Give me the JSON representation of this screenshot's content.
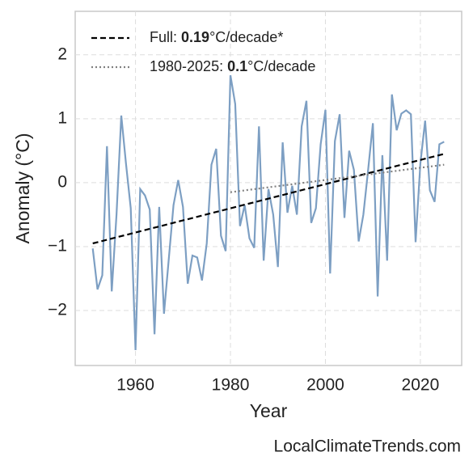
{
  "chart_data": {
    "type": "line",
    "xlabel": "Year",
    "ylabel": "Anomaly (°C)",
    "watermark": "LocalClimateTrends.com",
    "x": [
      1951,
      1952,
      1953,
      1954,
      1955,
      1956,
      1957,
      1958,
      1959,
      1960,
      1961,
      1962,
      1963,
      1964,
      1965,
      1966,
      1967,
      1968,
      1969,
      1970,
      1971,
      1972,
      1973,
      1974,
      1975,
      1976,
      1977,
      1978,
      1979,
      1980,
      1981,
      1982,
      1983,
      1984,
      1985,
      1986,
      1987,
      1988,
      1989,
      1990,
      1991,
      1992,
      1993,
      1994,
      1995,
      1996,
      1997,
      1998,
      1999,
      2000,
      2001,
      2002,
      2003,
      2004,
      2005,
      2006,
      2007,
      2008,
      2009,
      2010,
      2011,
      2012,
      2013,
      2014,
      2015,
      2016,
      2017,
      2018,
      2019,
      2020,
      2021,
      2022,
      2023,
      2024,
      2025
    ],
    "values": [
      -1.03,
      -1.67,
      -1.45,
      0.57,
      -1.7,
      -0.5,
      1.05,
      0.3,
      -0.4,
      -2.62,
      -0.1,
      -0.2,
      -0.42,
      -2.37,
      -0.38,
      -2.05,
      -1.2,
      -0.35,
      0.04,
      -0.38,
      -1.58,
      -1.14,
      -1.17,
      -1.53,
      -0.95,
      0.28,
      0.53,
      -0.83,
      -1.07,
      1.68,
      1.23,
      -0.68,
      -0.35,
      -0.87,
      -1.02,
      0.88,
      -1.22,
      -0.1,
      -0.5,
      -1.32,
      0.63,
      -0.47,
      -0.05,
      -0.5,
      0.88,
      1.28,
      -0.63,
      -0.4,
      0.6,
      1.14,
      -1.42,
      0.65,
      1.07,
      -0.55,
      0.5,
      0.2,
      -0.92,
      -0.5,
      0.2,
      0.93,
      -1.78,
      0.43,
      -1.22,
      1.38,
      0.82,
      1.08,
      1.13,
      1.07,
      -0.93,
      0.3,
      0.97,
      -0.12,
      -0.3,
      0.6,
      0.64
    ],
    "color": "#7d9fc3",
    "series": [
      {
        "name": "Full: 0.19°C/decade*",
        "color": "#000000",
        "style": "dashed",
        "x": [
          1951,
          2025
        ],
        "values": [
          -0.95,
          0.45
        ]
      },
      {
        "name": "1980-2025: 0.1°C/decade",
        "color": "#808080",
        "style": "dotted",
        "x": [
          1980,
          2025
        ],
        "values": [
          -0.15,
          0.28
        ]
      }
    ],
    "xlim": [
      1947.3,
      2028.7
    ],
    "ylim": [
      -2.86,
      2.68
    ],
    "xticks": [
      1960,
      1980,
      2000,
      2020
    ],
    "yticks": [
      {
        "value": -2,
        "label": "−2"
      },
      {
        "value": -1,
        "label": "−1"
      },
      0,
      1,
      2
    ],
    "grid": true,
    "legend": "upper left"
  }
}
